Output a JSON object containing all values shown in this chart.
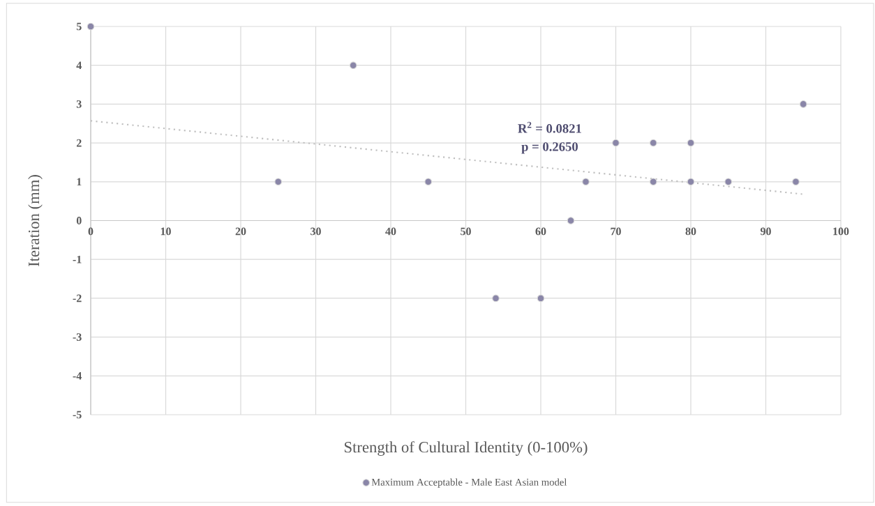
{
  "chart_data": {
    "type": "scatter",
    "xlabel": "Strength of Cultural Identity (0-100%)",
    "ylabel": "Iteration (mm)",
    "annotations": [
      "R$^{2}$ = 0.0821",
      "p = 0.2650"
    ],
    "xlim": [
      0,
      100
    ],
    "xticks": [
      0,
      10,
      20,
      30,
      40,
      50,
      60,
      70,
      80,
      90,
      100
    ],
    "ylim": [
      -5,
      5
    ],
    "yticks": [
      -5,
      -4,
      -3,
      -2,
      -1,
      0,
      1,
      2,
      3,
      4,
      5
    ],
    "grid": true,
    "legend": "bottom",
    "series": [
      {
        "name": "Maximum Acceptable - Male East Asian model",
        "color": "#8a86a8",
        "marker": "circle",
        "x": [
          0,
          25,
          35,
          45,
          54,
          60,
          64,
          66,
          70,
          75,
          75,
          80,
          80,
          85,
          94,
          95
        ],
        "values": [
          5,
          1,
          4,
          1,
          -2,
          -2,
          0,
          1,
          2,
          2,
          1,
          2,
          1,
          1,
          1,
          3
        ]
      },
      {
        "type": "line",
        "color": "#bfbfbf",
        "marker": "none",
        "line_style": "dotted",
        "x": [
          0,
          95
        ],
        "values": [
          2.57,
          0.68
        ]
      }
    ]
  }
}
